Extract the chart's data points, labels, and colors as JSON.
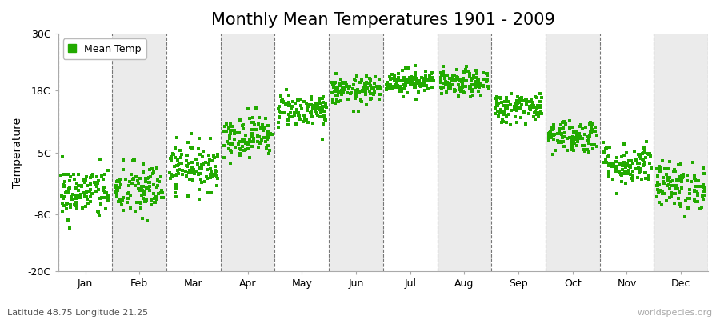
{
  "title": "Monthly Mean Temperatures 1901 - 2009",
  "ylabel": "Temperature",
  "xlabel_bottom": "Latitude 48.75 Longitude 21.25",
  "watermark": "worldspecies.org",
  "legend_label": "Mean Temp",
  "ylim": [
    -20,
    30
  ],
  "yticks": [
    -20,
    -8,
    5,
    18,
    30
  ],
  "ytick_labels": [
    "-20C",
    "-8C",
    "5C",
    "18C",
    "30C"
  ],
  "months": [
    "Jan",
    "Feb",
    "Mar",
    "Apr",
    "May",
    "Jun",
    "Jul",
    "Aug",
    "Sep",
    "Oct",
    "Nov",
    "Dec"
  ],
  "mean_temps": [
    -3.5,
    -3.0,
    2.0,
    8.5,
    14.0,
    18.0,
    20.0,
    19.5,
    14.5,
    8.5,
    2.5,
    -2.0
  ],
  "std_temps": [
    2.8,
    3.0,
    2.5,
    2.2,
    1.8,
    1.5,
    1.3,
    1.4,
    1.6,
    1.8,
    2.2,
    2.5
  ],
  "n_years": 109,
  "dot_color": "#22aa00",
  "dot_size": 7,
  "bg_white": "#ffffff",
  "bg_light_gray": "#ebebeb",
  "grid_color": "#777777",
  "title_fontsize": 15,
  "axis_fontsize": 10,
  "tick_fontsize": 9,
  "seed": 42
}
